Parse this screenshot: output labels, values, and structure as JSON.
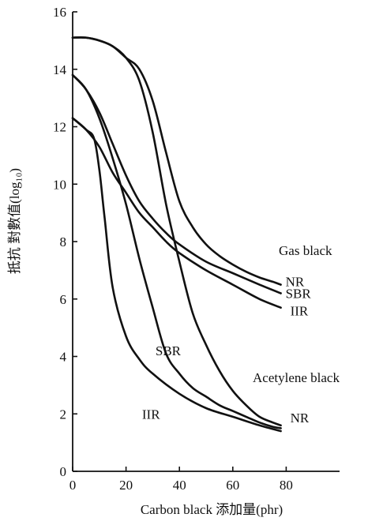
{
  "chart_data": {
    "type": "line",
    "xlabel": "Carbon black 添加量(phr)",
    "ylabel": "抵抗 對數值(log₁₀)",
    "xlim": [
      0,
      100
    ],
    "ylim": [
      0,
      16
    ],
    "x_ticks": [
      0,
      20,
      40,
      60,
      80
    ],
    "y_ticks": [
      0,
      2,
      4,
      6,
      8,
      10,
      12,
      14,
      16
    ],
    "grid": false,
    "annotations": [
      "Gas black",
      "Acetylene black"
    ],
    "series": [
      {
        "name": "NR",
        "group": "Gas black",
        "x": [
          0,
          5,
          10,
          15,
          20,
          25,
          30,
          35,
          40,
          45,
          50,
          55,
          60,
          65,
          70,
          75,
          78
        ],
        "y": [
          15.1,
          15.1,
          15.0,
          14.8,
          14.4,
          14.0,
          12.9,
          11.1,
          9.4,
          8.5,
          7.9,
          7.5,
          7.2,
          6.95,
          6.75,
          6.6,
          6.5
        ]
      },
      {
        "name": "SBR",
        "group": "Gas black",
        "x": [
          0,
          5,
          10,
          15,
          20,
          25,
          30,
          35,
          40,
          50,
          60,
          70,
          78
        ],
        "y": [
          13.8,
          13.3,
          12.5,
          11.4,
          10.3,
          9.4,
          8.8,
          8.3,
          7.9,
          7.3,
          6.9,
          6.5,
          6.2
        ]
      },
      {
        "name": "IIR",
        "group": "Gas black",
        "x": [
          0,
          5,
          10,
          15,
          20,
          25,
          30,
          35,
          40,
          50,
          60,
          70,
          78
        ],
        "y": [
          12.3,
          11.9,
          11.3,
          10.4,
          9.7,
          9.0,
          8.5,
          8.0,
          7.6,
          7.0,
          6.5,
          6.0,
          5.7
        ]
      },
      {
        "name": "NR",
        "group": "Acetylene black",
        "x": [
          0,
          5,
          10,
          15,
          20,
          25,
          30,
          35,
          40,
          45,
          50,
          55,
          60,
          65,
          70,
          75,
          78
        ],
        "y": [
          15.1,
          15.1,
          15.0,
          14.8,
          14.4,
          13.6,
          11.8,
          9.3,
          7.3,
          5.5,
          4.4,
          3.5,
          2.8,
          2.3,
          1.9,
          1.7,
          1.6
        ]
      },
      {
        "name": "SBR",
        "group": "Acetylene black",
        "x": [
          0,
          5,
          10,
          15,
          20,
          25,
          30,
          35,
          40,
          45,
          50,
          55,
          60,
          65,
          70,
          75,
          78
        ],
        "y": [
          13.8,
          13.3,
          12.3,
          10.9,
          9.3,
          7.4,
          5.7,
          4.1,
          3.4,
          2.9,
          2.6,
          2.3,
          2.1,
          1.9,
          1.7,
          1.55,
          1.5
        ]
      },
      {
        "name": "IIR",
        "group": "Acetylene black",
        "x": [
          0,
          5,
          8,
          10,
          12,
          15,
          20,
          25,
          30,
          40,
          50,
          60,
          70,
          78
        ],
        "y": [
          12.3,
          11.9,
          11.6,
          10.5,
          8.8,
          6.4,
          4.7,
          3.9,
          3.4,
          2.7,
          2.2,
          1.9,
          1.6,
          1.4
        ]
      }
    ]
  }
}
